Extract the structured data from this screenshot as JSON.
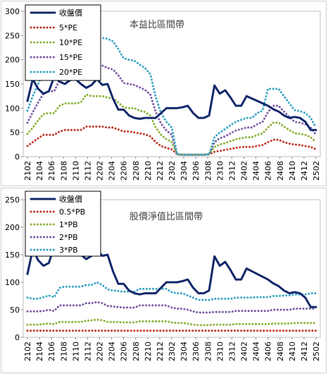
{
  "colors": {
    "price": "#12286b",
    "band1": "#c0392b",
    "band2": "#8db33a",
    "band3": "#7d5ba6",
    "band4": "#3aa6c4"
  },
  "chart_data": [
    {
      "type": "line",
      "title": "本益比區間帶",
      "ylim": [
        0,
        300
      ],
      "yticks": [
        0,
        50,
        100,
        150,
        200,
        250,
        300
      ],
      "xtick_labels": [
        "2102",
        "2104",
        "2106",
        "2108",
        "2110",
        "2112",
        "2202",
        "2204",
        "2206",
        "2208",
        "2210",
        "2212",
        "2302",
        "2304",
        "2306",
        "2308",
        "2310",
        "2312",
        "2402",
        "2404",
        "2406",
        "2408",
        "2410",
        "2412",
        "2502"
      ],
      "legend_position": "top-left",
      "series": [
        {
          "name": "收盤價",
          "style": "solid",
          "values": [
            115,
            160,
            140,
            130,
            135,
            165,
            155,
            150,
            158,
            160,
            150,
            142,
            148,
            160,
            148,
            150,
            120,
            97,
            97,
            85,
            80,
            78,
            80,
            80,
            80,
            90,
            100,
            100,
            100,
            102,
            105,
            90,
            80,
            80,
            85,
            147,
            130,
            137,
            122,
            105,
            105,
            125,
            120,
            115,
            110,
            105,
            98,
            93,
            85,
            80,
            82,
            80,
            72,
            55,
            55
          ]
        },
        {
          "name": "5*PE",
          "style": "dotted",
          "values": [
            22,
            30,
            38,
            45,
            45,
            45,
            52,
            55,
            55,
            55,
            55,
            62,
            62,
            62,
            62,
            60,
            60,
            56,
            52,
            52,
            50,
            48,
            46,
            42,
            30,
            22,
            18,
            15,
            5,
            4,
            4,
            4,
            4,
            4,
            5,
            10,
            12,
            14,
            16,
            18,
            20,
            20,
            20,
            22,
            24,
            30,
            35,
            35,
            30,
            27,
            25,
            24,
            22,
            20,
            15
          ]
        },
        {
          "name": "10*PE",
          "style": "dotted",
          "values": [
            47,
            60,
            75,
            88,
            90,
            90,
            105,
            110,
            110,
            110,
            112,
            128,
            125,
            125,
            125,
            122,
            120,
            112,
            102,
            100,
            100,
            95,
            92,
            85,
            60,
            45,
            36,
            30,
            5,
            4,
            4,
            4,
            4,
            4,
            5,
            20,
            25,
            28,
            32,
            36,
            38,
            40,
            40,
            45,
            48,
            60,
            70,
            70,
            62,
            55,
            48,
            47,
            45,
            40,
            30
          ]
        },
        {
          "name": "15*PE",
          "style": "dotted",
          "values": [
            70,
            92,
            112,
            130,
            135,
            135,
            158,
            165,
            165,
            168,
            170,
            190,
            188,
            188,
            188,
            183,
            180,
            168,
            152,
            150,
            148,
            143,
            138,
            128,
            92,
            68,
            54,
            45,
            5,
            4,
            4,
            4,
            4,
            4,
            5,
            30,
            38,
            42,
            48,
            54,
            57,
            60,
            60,
            67,
            72,
            92,
            105,
            105,
            93,
            82,
            72,
            70,
            67,
            60,
            45
          ]
        },
        {
          "name": "20*PE",
          "style": "dotted",
          "values": [
            95,
            125,
            150,
            175,
            180,
            180,
            210,
            220,
            220,
            220,
            225,
            250,
            245,
            245,
            245,
            243,
            238,
            222,
            203,
            200,
            198,
            190,
            183,
            170,
            123,
            90,
            72,
            60,
            5,
            4,
            4,
            4,
            4,
            4,
            5,
            40,
            50,
            57,
            65,
            72,
            76,
            80,
            80,
            90,
            95,
            140,
            140,
            140,
            125,
            110,
            96,
            94,
            90,
            80,
            60
          ]
        }
      ]
    },
    {
      "type": "line",
      "title": "股價淨值比區間帶",
      "ylim": [
        0,
        250
      ],
      "yticks": [
        0,
        50,
        100,
        150,
        200,
        250
      ],
      "xtick_labels": [
        "2102",
        "2104",
        "2106",
        "2108",
        "2110",
        "2112",
        "2202",
        "2204",
        "2206",
        "2208",
        "2210",
        "2212",
        "2302",
        "2304",
        "2306",
        "2308",
        "2310",
        "2312",
        "2402",
        "2404",
        "2406",
        "2408",
        "2410",
        "2412",
        "2502"
      ],
      "legend_position": "top-left",
      "series": [
        {
          "name": "收盤價",
          "style": "solid",
          "values": [
            115,
            160,
            140,
            130,
            135,
            165,
            155,
            150,
            158,
            160,
            150,
            142,
            148,
            160,
            148,
            150,
            120,
            97,
            97,
            85,
            80,
            78,
            80,
            80,
            80,
            90,
            100,
            100,
            100,
            102,
            105,
            90,
            80,
            80,
            85,
            147,
            130,
            137,
            122,
            105,
            105,
            125,
            120,
            115,
            110,
            105,
            98,
            93,
            85,
            80,
            82,
            80,
            72,
            55,
            55
          ]
        },
        {
          "name": "0.5*PB",
          "style": "dotted",
          "values": [
            12,
            12,
            12,
            12,
            12,
            12,
            12,
            12,
            12,
            12,
            12,
            12,
            12,
            12,
            12,
            12,
            12,
            12,
            12,
            12,
            12,
            12,
            12,
            12,
            12,
            12,
            12,
            12,
            12,
            12,
            12,
            12,
            12,
            12,
            12,
            12,
            12,
            12,
            12,
            12,
            12,
            12,
            12,
            12,
            12,
            12,
            12,
            12,
            12,
            12,
            12,
            12,
            12,
            12,
            12
          ]
        },
        {
          "name": "1*PB",
          "style": "dotted",
          "values": [
            23,
            23,
            23,
            24,
            25,
            24,
            28,
            28,
            28,
            28,
            28,
            30,
            31,
            32,
            31,
            28,
            28,
            28,
            27,
            27,
            27,
            29,
            29,
            29,
            29,
            29,
            29,
            27,
            26,
            26,
            25,
            23,
            22,
            22,
            22,
            23,
            23,
            23,
            23,
            24,
            24,
            24,
            24,
            24,
            24,
            24,
            25,
            25,
            25,
            25,
            26,
            26,
            26,
            26,
            26
          ]
        },
        {
          "name": "2*PB",
          "style": "dotted",
          "values": [
            47,
            47,
            47,
            48,
            50,
            48,
            58,
            58,
            58,
            58,
            58,
            62,
            62,
            64,
            62,
            57,
            56,
            55,
            54,
            54,
            54,
            58,
            58,
            58,
            58,
            58,
            58,
            54,
            52,
            52,
            50,
            47,
            45,
            45,
            45,
            46,
            46,
            46,
            46,
            48,
            48,
            48,
            48,
            48,
            48,
            48,
            50,
            50,
            50,
            50,
            52,
            52,
            52,
            52,
            52
          ]
        },
        {
          "name": "3*PB",
          "style": "dotted",
          "values": [
            72,
            70,
            70,
            73,
            76,
            73,
            90,
            92,
            92,
            92,
            92,
            95,
            95,
            100,
            95,
            87,
            85,
            84,
            83,
            83,
            83,
            88,
            88,
            88,
            88,
            88,
            88,
            82,
            80,
            80,
            76,
            72,
            68,
            68,
            68,
            70,
            70,
            70,
            70,
            72,
            72,
            72,
            72,
            73,
            73,
            73,
            75,
            75,
            76,
            76,
            78,
            78,
            78,
            80,
            80
          ]
        }
      ]
    }
  ]
}
